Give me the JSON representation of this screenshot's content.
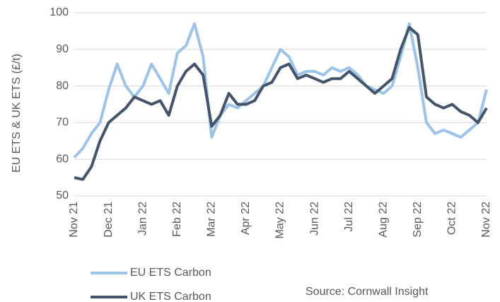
{
  "chart_data": {
    "type": "line",
    "y_label": "EU ETS & UK ETS (£/t)",
    "source": "Source: Cornwall Insight",
    "categories": [
      "Nov 21",
      null,
      null,
      null,
      "Dec 21",
      null,
      null,
      null,
      "Jan 22",
      null,
      null,
      null,
      "Feb 22",
      null,
      null,
      null,
      "Mar 22",
      null,
      null,
      null,
      "Apr 22",
      null,
      null,
      null,
      "May 22",
      null,
      null,
      null,
      "Jun 22",
      null,
      null,
      null,
      "Jul 22",
      null,
      null,
      null,
      "Aug 22",
      null,
      null,
      null,
      "Sep 22",
      null,
      null,
      null,
      "Oct 22",
      null,
      null,
      null,
      "Nov 22"
    ],
    "series": [
      {
        "name": "EU ETS Carbon",
        "color": "#9dc3e6",
        "values": [
          60.5,
          63,
          67,
          70,
          79,
          86,
          80,
          77,
          80,
          86,
          82,
          78,
          89,
          91,
          97,
          88,
          66,
          72,
          75,
          74,
          76,
          78,
          80,
          85,
          90,
          88,
          83,
          84,
          84,
          83,
          85,
          84,
          85,
          83,
          80,
          79,
          78,
          80,
          88,
          97,
          85,
          70,
          67,
          68,
          67,
          66,
          68,
          70,
          79
        ]
      },
      {
        "name": "UK ETS Carbon",
        "color": "#44546a",
        "values": [
          55,
          54.5,
          58,
          65,
          70,
          72,
          74,
          77,
          76,
          75,
          76,
          72,
          80,
          84,
          86,
          83,
          69,
          72,
          78,
          75,
          75,
          76,
          80,
          81,
          85,
          86,
          82,
          83,
          82,
          81,
          82,
          82,
          84,
          82,
          80,
          78,
          80,
          82,
          90,
          96,
          94,
          77,
          75,
          74,
          75,
          73,
          72,
          70,
          74
        ]
      }
    ],
    "ylim": [
      50,
      100
    ],
    "yticks": [
      50,
      60,
      70,
      80,
      90,
      100
    ],
    "grid": true
  }
}
